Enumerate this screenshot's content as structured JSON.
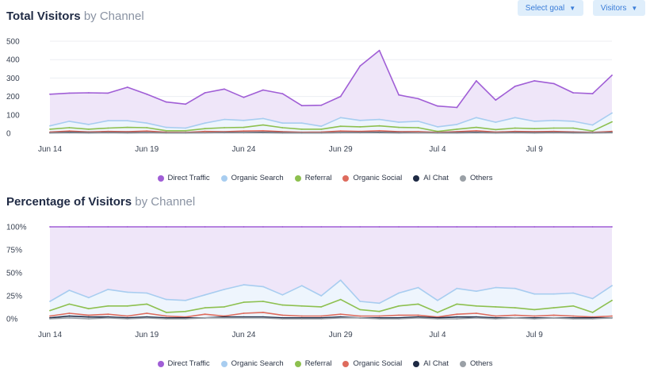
{
  "toolbar": {
    "select_goal_label": "Select goal",
    "visitors_label": "Visitors"
  },
  "colors": {
    "direct": "#a05ed6",
    "organic_search": "#a8cdf0",
    "referral": "#8dc04f",
    "organic_social": "#de6b5d",
    "ai_chat": "#1e2a44",
    "others": "#9aa0a6",
    "area_fill": "#efe6f9",
    "grid": "#eceef2"
  },
  "chart_data": [
    {
      "type": "area",
      "title": "Total Visitors",
      "subtitle": "by Channel",
      "x_ticks": [
        "Jun 14",
        "Jun 19",
        "Jun 24",
        "Jun 29",
        "Jul 4",
        "Jul 9"
      ],
      "x_dates": [
        "Jun 14",
        "Jun 15",
        "Jun 16",
        "Jun 17",
        "Jun 18",
        "Jun 19",
        "Jun 20",
        "Jun 21",
        "Jun 22",
        "Jun 23",
        "Jun 24",
        "Jun 25",
        "Jun 26",
        "Jun 27",
        "Jun 28",
        "Jun 29",
        "Jun 30",
        "Jul 1",
        "Jul 2",
        "Jul 3",
        "Jul 4",
        "Jul 5",
        "Jul 6",
        "Jul 7",
        "Jul 8",
        "Jul 9",
        "Jul 10",
        "Jul 11",
        "Jul 12",
        "Jul 13"
      ],
      "y_ticks": [
        "500",
        "400",
        "300",
        "200",
        "100",
        "0"
      ],
      "ylim": [
        0,
        500
      ],
      "grid": true,
      "legend": "bottom",
      "series": [
        {
          "name": "Direct Traffic",
          "color_key": "direct",
          "values": [
            212,
            218,
            220,
            218,
            250,
            212,
            170,
            158,
            220,
            240,
            195,
            235,
            215,
            150,
            152,
            200,
            365,
            450,
            208,
            188,
            148,
            140,
            285,
            180,
            255,
            285,
            270,
            220,
            215,
            315
          ]
        },
        {
          "name": "Organic Search",
          "color_key": "organic_search",
          "values": [
            40,
            65,
            48,
            68,
            68,
            55,
            32,
            28,
            55,
            75,
            70,
            80,
            55,
            55,
            38,
            85,
            70,
            75,
            60,
            65,
            35,
            48,
            85,
            60,
            85,
            65,
            70,
            65,
            45,
            110
          ]
        },
        {
          "name": "Referral",
          "color_key": "referral",
          "values": [
            22,
            30,
            22,
            28,
            32,
            30,
            14,
            14,
            25,
            30,
            32,
            45,
            30,
            22,
            22,
            38,
            35,
            40,
            32,
            30,
            10,
            22,
            32,
            20,
            28,
            25,
            28,
            28,
            12,
            62
          ]
        },
        {
          "name": "Organic Social",
          "color_key": "organic_social",
          "values": [
            6,
            12,
            7,
            10,
            8,
            12,
            5,
            4,
            10,
            8,
            12,
            14,
            8,
            5,
            6,
            12,
            10,
            14,
            8,
            9,
            4,
            8,
            14,
            6,
            10,
            8,
            10,
            7,
            4,
            10
          ]
        },
        {
          "name": "AI Chat",
          "color_key": "ai_chat",
          "values": [
            2,
            5,
            3,
            4,
            3,
            4,
            2,
            2,
            3,
            4,
            4,
            5,
            3,
            2,
            2,
            4,
            4,
            5,
            3,
            3,
            2,
            3,
            5,
            2,
            4,
            3,
            4,
            3,
            2,
            4
          ]
        },
        {
          "name": "Others",
          "color_key": "others",
          "values": [
            1,
            2,
            1,
            2,
            1,
            2,
            1,
            1,
            2,
            2,
            2,
            2,
            1,
            1,
            1,
            2,
            2,
            2,
            1,
            2,
            1,
            1,
            2,
            1,
            2,
            1,
            2,
            1,
            1,
            2
          ]
        }
      ]
    },
    {
      "type": "area",
      "title": "Percentage of Visitors",
      "subtitle": "by Channel",
      "x_ticks": [
        "Jun 14",
        "Jun 19",
        "Jun 24",
        "Jun 29",
        "Jul 4",
        "Jul 9"
      ],
      "x_dates": [
        "Jun 14",
        "Jun 15",
        "Jun 16",
        "Jun 17",
        "Jun 18",
        "Jun 19",
        "Jun 20",
        "Jun 21",
        "Jun 22",
        "Jun 23",
        "Jun 24",
        "Jun 25",
        "Jun 26",
        "Jun 27",
        "Jun 28",
        "Jun 29",
        "Jun 30",
        "Jul 1",
        "Jul 2",
        "Jul 3",
        "Jul 4",
        "Jul 5",
        "Jul 6",
        "Jul 7",
        "Jul 8",
        "Jul 9",
        "Jul 10",
        "Jul 11",
        "Jul 12",
        "Jul 13"
      ],
      "y_ticks": [
        "100%",
        "75%",
        "50%",
        "25%",
        "0%"
      ],
      "ylim": [
        0,
        100
      ],
      "grid": true,
      "legend": "bottom",
      "series": [
        {
          "name": "Direct Traffic",
          "color_key": "direct",
          "values": [
            100,
            100,
            100,
            100,
            100,
            100,
            100,
            100,
            100,
            100,
            100,
            100,
            100,
            100,
            100,
            100,
            100,
            100,
            100,
            100,
            100,
            100,
            100,
            100,
            100,
            100,
            100,
            100,
            100,
            100
          ]
        },
        {
          "name": "Organic Search",
          "color_key": "organic_search",
          "values": [
            19,
            31,
            23,
            32,
            29,
            28,
            21,
            20,
            26,
            32,
            37,
            35,
            26,
            36,
            25,
            42,
            19,
            17,
            28,
            34,
            20,
            33,
            30,
            34,
            33,
            27,
            27,
            28,
            22,
            36
          ]
        },
        {
          "name": "Referral",
          "color_key": "referral",
          "values": [
            9,
            16,
            11,
            14,
            14,
            16,
            7,
            8,
            12,
            13,
            18,
            19,
            15,
            14,
            13,
            21,
            10,
            8,
            14,
            16,
            7,
            16,
            14,
            13,
            12,
            10,
            12,
            14,
            7,
            20
          ]
        },
        {
          "name": "Organic Social",
          "color_key": "organic_social",
          "values": [
            3,
            6,
            4,
            5,
            3,
            6,
            3,
            2,
            5,
            3,
            6,
            7,
            4,
            3,
            3,
            5,
            3,
            3,
            4,
            4,
            2,
            5,
            6,
            3,
            4,
            3,
            4,
            3,
            2,
            3
          ]
        },
        {
          "name": "AI Chat",
          "color_key": "ai_chat",
          "values": [
            1,
            3,
            2,
            2,
            1,
            2,
            1,
            1,
            1,
            2,
            2,
            2,
            1,
            1,
            1,
            2,
            1,
            1,
            1,
            2,
            1,
            2,
            2,
            1,
            1,
            1,
            1,
            1,
            1,
            1
          ]
        },
        {
          "name": "Others",
          "color_key": "others",
          "values": [
            0,
            1,
            0,
            1,
            0,
            1,
            0,
            0,
            1,
            1,
            1,
            1,
            0,
            0,
            0,
            1,
            1,
            0,
            0,
            1,
            0,
            0,
            1,
            0,
            1,
            0,
            1,
            0,
            0,
            1
          ]
        }
      ]
    }
  ]
}
